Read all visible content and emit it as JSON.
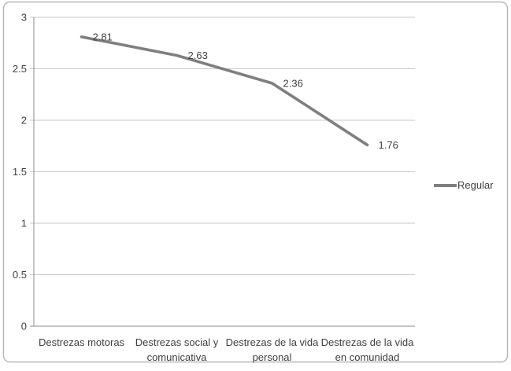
{
  "chart_data": {
    "type": "line",
    "title": "",
    "xlabel": "",
    "ylabel": "",
    "categories": [
      "Destrezas motoras",
      "Destrezas social y comunicativa",
      "Destrezas de la vida personal",
      "Destrezas de la vida en comunidad"
    ],
    "category_lines": [
      [
        "Destrezas motoras"
      ],
      [
        "Destrezas social y",
        "comunicativa"
      ],
      [
        "Destrezas de la vida",
        "personal"
      ],
      [
        "Destrezas de la vida",
        "en comunidad"
      ]
    ],
    "series": [
      {
        "name": "Regular",
        "values": [
          2.81,
          2.63,
          2.36,
          1.76
        ],
        "color": "#7f7f7f"
      }
    ],
    "data_labels": [
      "2.81",
      "2.63",
      "2.36",
      "1.76"
    ],
    "ylim": [
      0,
      3
    ],
    "yticks": [
      "0",
      "0.5",
      "1",
      "1.5",
      "2",
      "2.5",
      "3"
    ],
    "grid": true,
    "legend_position": "right",
    "colors": {
      "line": "#7f7f7f",
      "gridline": "#c9c9c9",
      "axis": "#9f9f9f",
      "text": "#404040",
      "border": "#b7b7b7"
    }
  }
}
